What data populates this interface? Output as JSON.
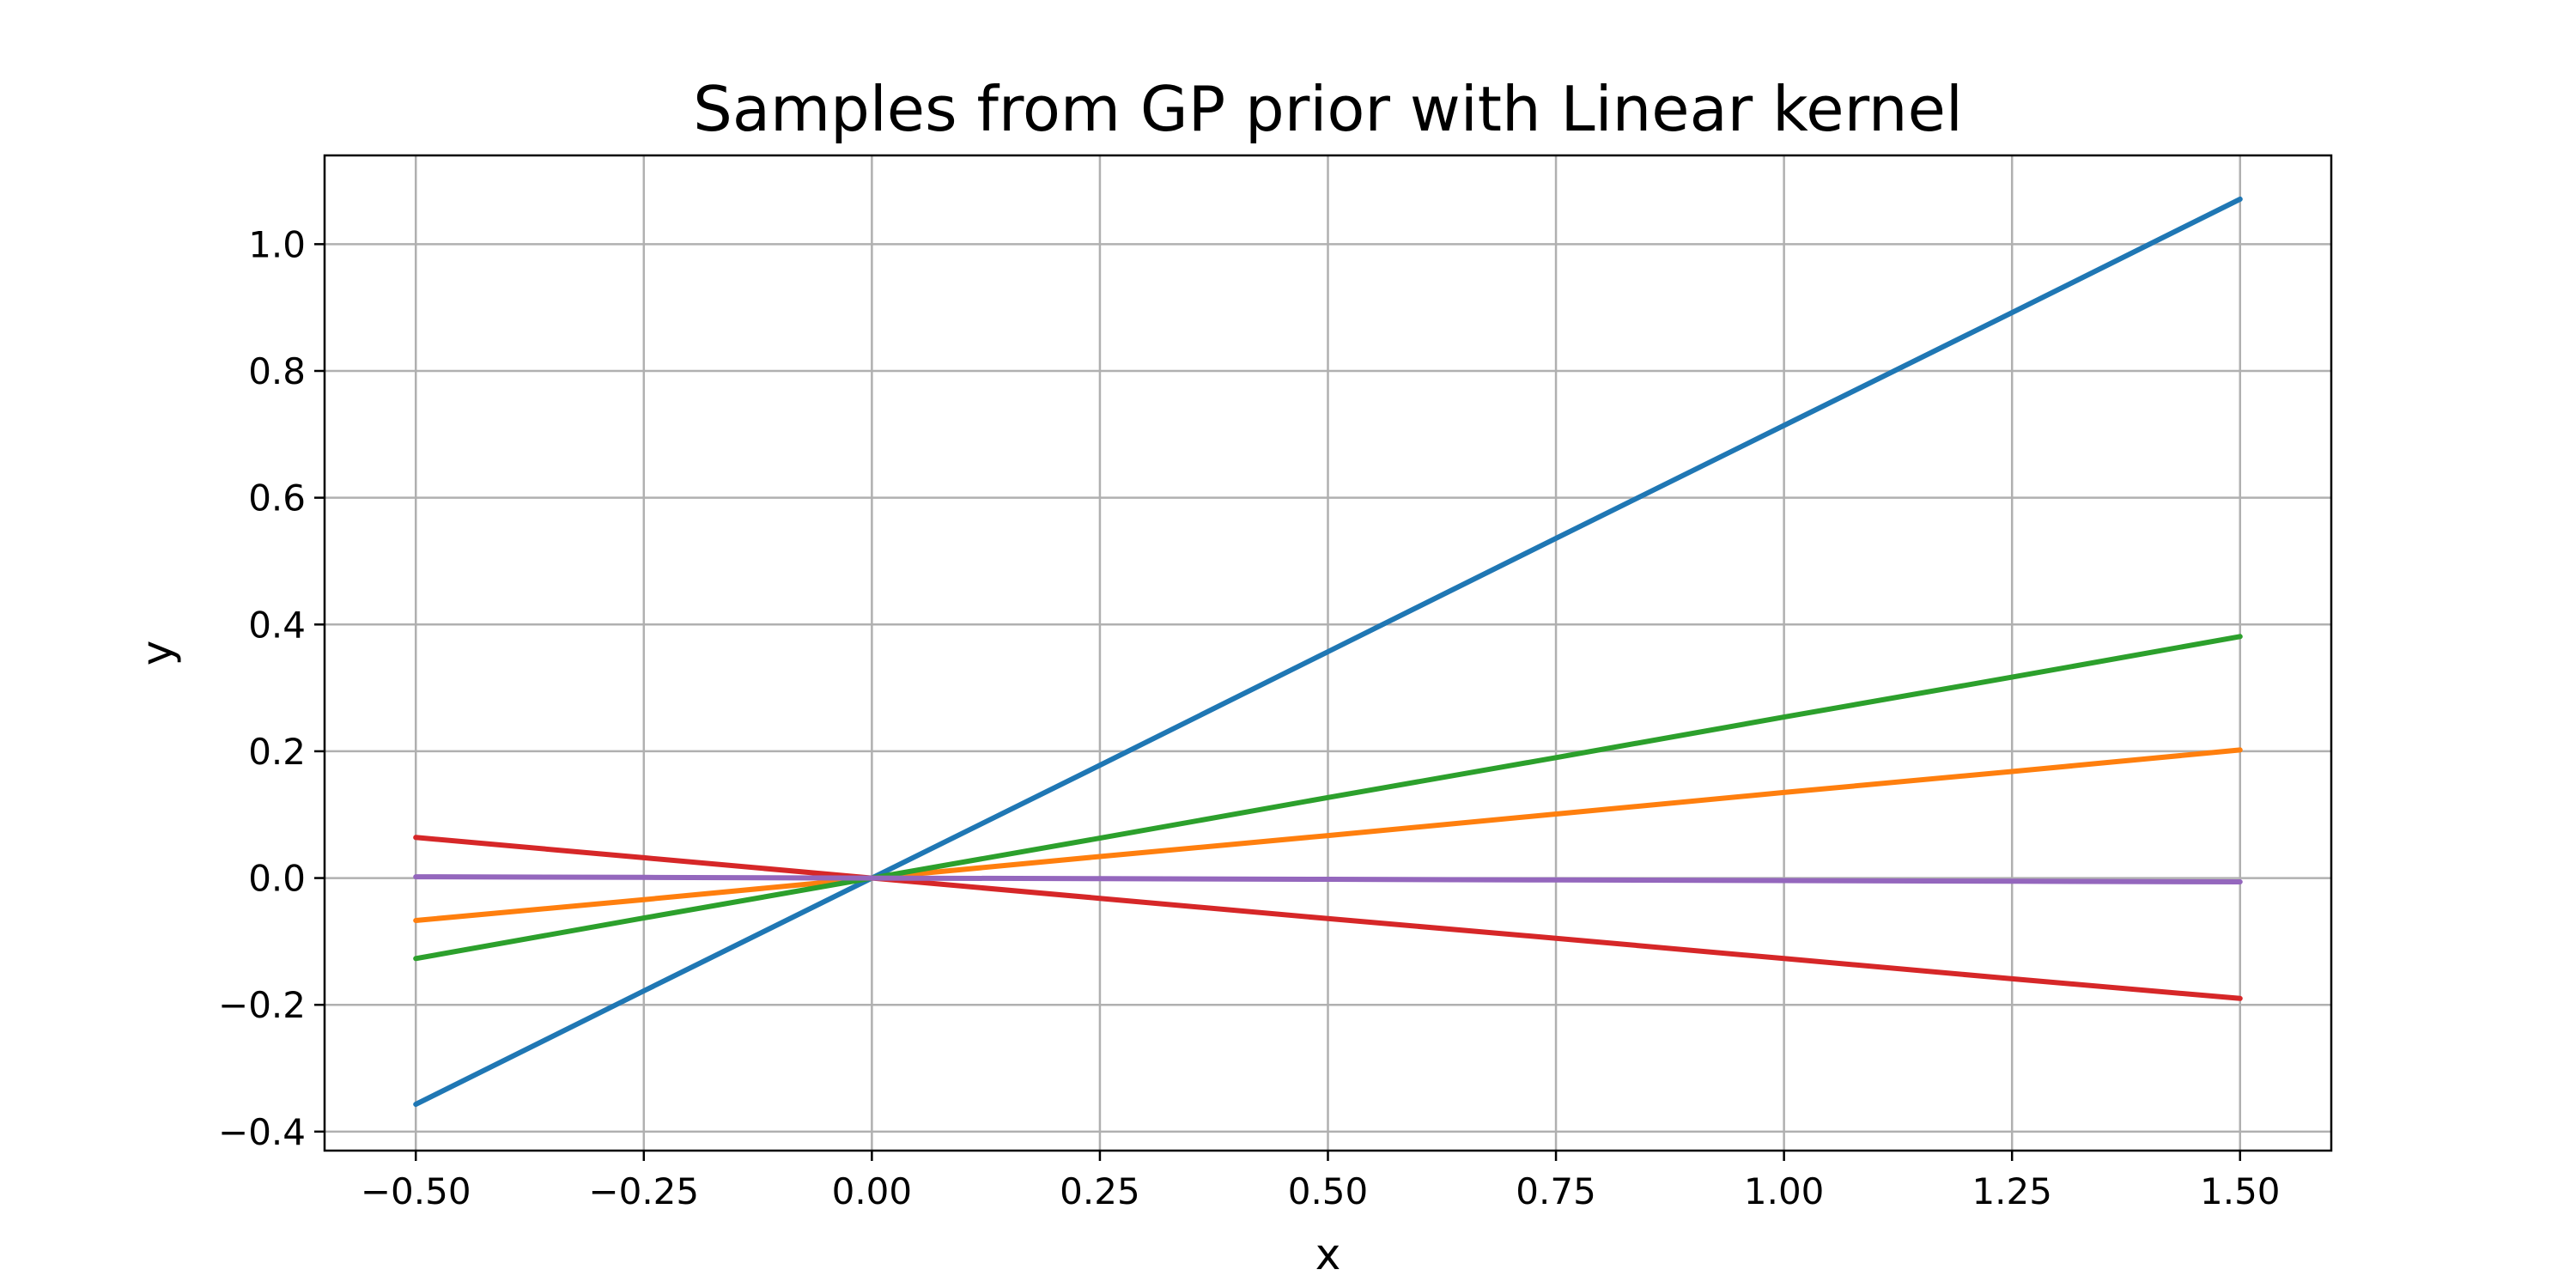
{
  "chart_data": {
    "type": "line",
    "title": "Samples from GP prior with Linear kernel",
    "xlabel": "x",
    "ylabel": "y",
    "xlim": [
      -0.6,
      1.6
    ],
    "ylim": [
      -0.43,
      1.14
    ],
    "grid": true,
    "x_ticks": [
      -0.5,
      -0.25,
      0.0,
      0.25,
      0.5,
      0.75,
      1.0,
      1.25,
      1.5
    ],
    "x_tick_labels": [
      "−0.50",
      "−0.25",
      "0.00",
      "0.25",
      "0.50",
      "0.75",
      "1.00",
      "1.25",
      "1.50"
    ],
    "y_ticks": [
      -0.4,
      -0.2,
      0.0,
      0.2,
      0.4,
      0.6,
      0.8,
      1.0
    ],
    "y_tick_labels": [
      "−0.4",
      "−0.2",
      "0.0",
      "0.2",
      "0.4",
      "0.6",
      "0.8",
      "1.0"
    ],
    "x": [
      -0.5,
      -0.25,
      0.0,
      0.25,
      0.5,
      0.75,
      1.0,
      1.25,
      1.5
    ],
    "series": [
      {
        "color": "#1f77b4",
        "values": [
          -0.357,
          -0.178,
          0.0,
          0.178,
          0.357,
          0.536,
          0.714,
          0.892,
          1.071
        ]
      },
      {
        "color": "#ff7f0e",
        "values": [
          -0.067,
          -0.034,
          0.0,
          0.034,
          0.067,
          0.101,
          0.135,
          0.168,
          0.202
        ]
      },
      {
        "color": "#2ca02c",
        "values": [
          -0.127,
          -0.063,
          0.0,
          0.063,
          0.127,
          0.19,
          0.254,
          0.317,
          0.381
        ]
      },
      {
        "color": "#d62728",
        "values": [
          0.064,
          0.032,
          0.0,
          -0.032,
          -0.064,
          -0.095,
          -0.127,
          -0.159,
          -0.19
        ]
      },
      {
        "color": "#9467bd",
        "values": [
          0.002,
          0.001,
          0.0,
          -0.001,
          -0.002,
          -0.003,
          -0.004,
          -0.005,
          -0.006
        ]
      }
    ]
  }
}
